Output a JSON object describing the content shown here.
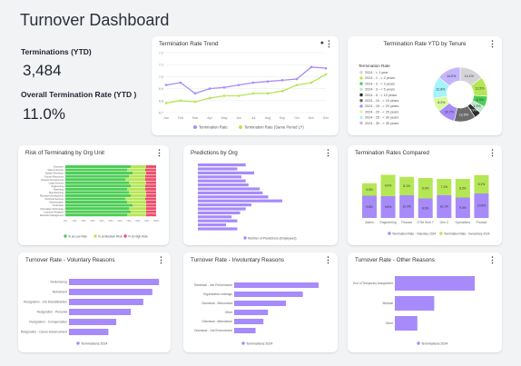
{
  "page": {
    "title": "Turnover Dashboard"
  },
  "kpis": {
    "terminations_label": "Terminations  (YTD)",
    "terminations_value": "3,484",
    "rate_label": "Overall Termination Rate (YTD )",
    "rate_value": "11.0%"
  },
  "colors": {
    "purple": "#a78bfa",
    "green": "#b5e655",
    "mid": "#86c94a",
    "red": "#ef4d6b",
    "bright_green": "#4ccd55"
  },
  "icons": {
    "menu": "kebab-icon",
    "insight": "lightbulb-icon"
  },
  "cards": {
    "trend": {
      "title": "Termination Rate Trend"
    },
    "tenure": {
      "title": "Termination Rate YTD by Tenure"
    },
    "risk": {
      "title": "Risk of Terminating by Org Unit"
    },
    "predictions": {
      "title": "Predictions by Org"
    },
    "compared": {
      "title": "Termination Rates Compared"
    },
    "voluntary": {
      "title": "Turnover Rate - Voluntary Reasons"
    },
    "involuntary": {
      "title": "Turnover Rate - Involuntary Reasons"
    },
    "other": {
      "title": "Turnover Rate - Other Reasons"
    }
  },
  "chart_data": [
    {
      "id": "trend",
      "type": "line",
      "x": [
        "Jan",
        "Feb",
        "Mar",
        "Apr",
        "May",
        "Jun",
        "Jul",
        "Aug",
        "Sep",
        "Oct",
        "Nov",
        "Dec"
      ],
      "ylim": [
        6.7,
        7.2
      ],
      "yticks": [
        "7.2",
        "7.1",
        "7.0",
        "6.9",
        "6.8",
        "6.7"
      ],
      "series": [
        {
          "name": "Termination Rate",
          "color": "#a78bfa",
          "values": [
            6.93,
            6.95,
            6.86,
            6.9,
            6.91,
            6.93,
            6.95,
            6.96,
            6.97,
            6.98,
            7.08,
            7.07
          ]
        },
        {
          "name": "Termination Rate (Same Period LY)",
          "color": "#b5e655",
          "values": [
            6.78,
            6.8,
            6.79,
            6.82,
            6.84,
            6.84,
            6.86,
            6.86,
            6.88,
            6.93,
            6.95,
            7.02
          ]
        }
      ]
    },
    {
      "id": "tenure",
      "type": "pie",
      "legend_title": "Termination Rate",
      "labels": [
        "2024 - < 1 year",
        "2024 - 1 - < 2 years",
        "2024 - 2 - < 3 years",
        "2024 - 3 - < 5 years",
        "2024 - 5 - < 10 years",
        "2024 - 10 - < 15 years",
        "2024 - 15 - < 20 years",
        "2024 - 20 - < 25 years",
        "2024 - 25 - < 30 years",
        "2024 - 30 - < 35 years"
      ],
      "values": [
        14.1,
        11.5,
        6.3,
        4.3,
        3.9,
        12.5,
        10.7,
        8.2,
        12.8,
        14.0
      ],
      "colors": [
        "#d4d4d8",
        "#b5e655",
        "#4ccd55",
        "#bde8cf",
        "#2b2b2b",
        "#6b6b6b",
        "#a78bfa",
        "#d9f99d",
        "#a5f3fc",
        "#c4b5fd"
      ],
      "data_labels": [
        "14.1%",
        "11.5%",
        "6.3%",
        "4.3%",
        "3.9%",
        "12.5%",
        "10.7%",
        "8.2%",
        "12.8%",
        "14.0%"
      ]
    },
    {
      "id": "risk",
      "type": "bar",
      "categories": [
        "Executive",
        "Sales & Service",
        "Quality Assurance",
        "Human Resources",
        "Network Development",
        "Legal Services",
        "Engineering",
        "Marketing",
        "Manufacturing",
        "Research Development",
        "Technical Services",
        "Administration",
        "Production",
        "Information Technology",
        "Customer Relations",
        "Retention Management"
      ],
      "xticks": [
        "0%",
        "10%",
        "20%",
        "30%",
        "40%",
        "50%",
        "60%",
        "70%",
        "80%",
        "90%",
        "100%"
      ],
      "series": [
        {
          "name": "% at Low Risk",
          "color": "#4ccd55",
          "values": [
            72,
            68,
            74,
            70,
            66,
            70,
            72,
            68,
            70,
            72,
            66,
            68,
            74,
            70,
            72,
            68
          ]
        },
        {
          "name": "% at Medium Risk",
          "color": "#b5e655",
          "values": [
            17,
            20,
            15,
            18,
            22,
            19,
            16,
            20,
            19,
            17,
            22,
            21,
            15,
            19,
            17,
            21
          ]
        },
        {
          "name": "% at High Risk",
          "color": "#ef4d6b",
          "values": [
            11,
            12,
            11,
            12,
            12,
            11,
            12,
            12,
            11,
            11,
            12,
            11,
            11,
            11,
            11,
            11
          ]
        }
      ]
    },
    {
      "id": "predictions",
      "type": "bar",
      "values": [
        34,
        28,
        40,
        31,
        34,
        36,
        44,
        46,
        50,
        60,
        38,
        34,
        30,
        24,
        28,
        20,
        28
      ],
      "series_name": "Number of Predictions (Employees)",
      "color": "#a78bfa"
    },
    {
      "id": "compared",
      "type": "bar",
      "categories": [
        "Admin",
        "Engineering",
        "Finance",
        "GTM Tech T",
        "Gen Z",
        "Operations",
        "Product"
      ],
      "series": [
        {
          "name": "Termination Rate - Voluntary 2024",
          "color": "#a78bfa",
          "values": [
            9.8,
            9.6,
            10.0,
            8.6,
            10.1,
            9.0,
            10.8
          ],
          "labels": [
            "9.8%",
            "9.6%",
            "10.0%",
            "8.6%",
            "10.1%",
            "9.0%",
            "10.8%"
          ]
        },
        {
          "name": "Termination Rate - Involuntary 2024",
          "color": "#b5e655",
          "values": [
            5.5,
            9.4,
            8.1,
            9.0,
            7.1,
            8.2,
            8.1
          ],
          "labels": [
            "5.5%",
            "9.4%",
            "8.1%",
            "9.0%",
            "7.1%",
            "8.2%",
            "8.1%"
          ]
        }
      ]
    },
    {
      "id": "voluntary",
      "type": "bar",
      "categories": [
        "Redundancy",
        "Retirement",
        "Resignation - Job Dissatisfaction",
        "Resignation - Personal",
        "Resignation - Compensation",
        "Resignation - Career Advancement"
      ],
      "values": [
        160,
        148,
        132,
        110,
        84,
        70
      ],
      "series_name": "Terminations 2024",
      "color": "#a78bfa"
    },
    {
      "id": "involuntary",
      "type": "bar",
      "categories": [
        "Dismissal - Job Performance",
        "Organisation redesign",
        "Dismissal - Misconduct",
        "Other",
        "Dismissal - Attendance",
        "Dismissal - Job Environment"
      ],
      "values": [
        150,
        122,
        92,
        60,
        52,
        38
      ],
      "series_name": "Terminations 2024",
      "color": "#a78bfa"
    },
    {
      "id": "other",
      "type": "bar",
      "categories": [
        "End of Temporary Assignment",
        "Medical",
        "Other"
      ],
      "values": [
        142,
        70,
        40
      ],
      "series_name": "Terminations 2024",
      "color": "#a78bfa"
    }
  ]
}
